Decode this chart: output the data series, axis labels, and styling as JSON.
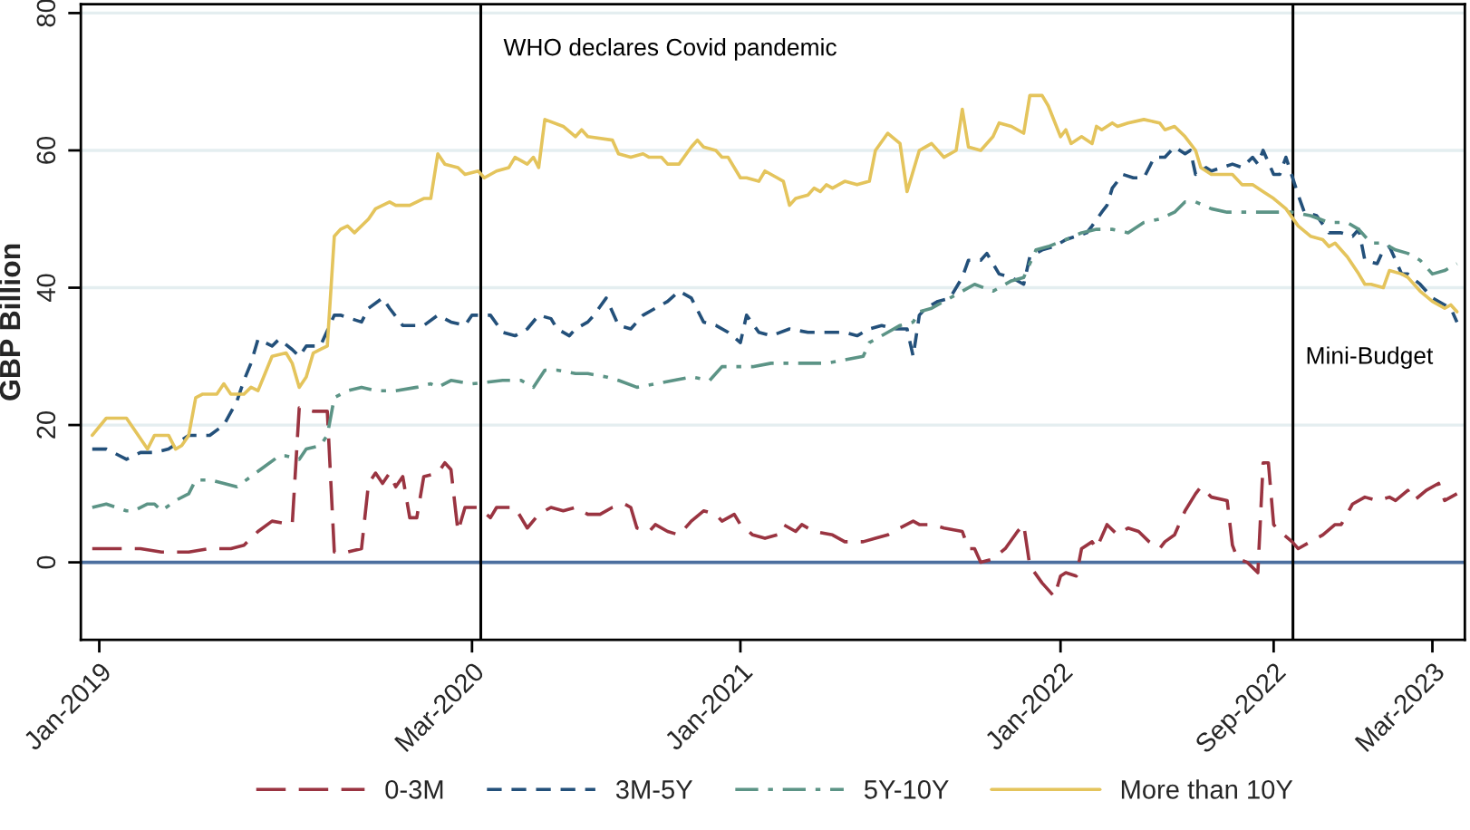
{
  "chart_data": {
    "type": "line",
    "ylabel": "GBP Billion",
    "xlim": [
      "2018-12-11",
      "2023-04-07"
    ],
    "xticks": [
      {
        "value": "2019-01",
        "label": "Jan-2019"
      },
      {
        "value": "2020-03",
        "label": "Mar-2020"
      },
      {
        "value": "2021-01",
        "label": "Jan-2021"
      },
      {
        "value": "2022-01",
        "label": "Jan-2022"
      },
      {
        "value": "2022-09",
        "label": "Sep-2022"
      },
      {
        "value": "2023-03",
        "label": "Mar-2023"
      }
    ],
    "ylim": [
      -11.3,
      81.3
    ],
    "yticks": [
      0,
      20,
      40,
      60,
      80
    ],
    "grid": "y",
    "legend": "bottom",
    "ref_lines": [
      {
        "axis": "y",
        "value": 0,
        "color": "#4c6f9f"
      },
      {
        "axis": "x",
        "value": "2020-03-11",
        "label": "WHO declares Covid pandemic",
        "color": "#000000"
      },
      {
        "axis": "x",
        "value": "2022-09-23",
        "label": "Mini-Budget",
        "color": "#000000"
      }
    ],
    "series": [
      {
        "name": "0-3M",
        "color": "#9a3441",
        "line_style": "longdash",
        "x": [
          "2018-12-24",
          "2019-01-25",
          "2019-02-17",
          "2019-03-13",
          "2019-04-13",
          "2019-05-07",
          "2019-05-31",
          "2019-06-15",
          "2019-07-01",
          "2019-07-17",
          "2019-08-09",
          "2019-08-17",
          "2019-09-02",
          "2019-09-18",
          "2019-09-26",
          "2019-10-11",
          "2019-10-27",
          "2019-11-04",
          "2019-11-12",
          "2019-11-20",
          "2019-11-28",
          "2019-12-05",
          "2019-12-13",
          "2019-12-21",
          "2019-12-29",
          "2020-01-06",
          "2020-01-22",
          "2020-01-30",
          "2020-02-06",
          "2020-02-14",
          "2020-02-22",
          "2020-03-08",
          "2020-03-22",
          "2020-03-29",
          "2020-04-19",
          "2020-05-03",
          "2020-05-16",
          "2020-05-30",
          "2020-06-13",
          "2020-06-27",
          "2020-07-11",
          "2020-07-25",
          "2020-08-08",
          "2020-08-22",
          "2020-08-29",
          "2020-09-05",
          "2020-09-19",
          "2020-09-26",
          "2020-10-10",
          "2020-10-23",
          "2020-11-06",
          "2020-11-20",
          "2020-12-04",
          "2020-12-11",
          "2020-12-25",
          "2021-01-01",
          "2021-01-15",
          "2021-01-29",
          "2021-02-12",
          "2021-02-19",
          "2021-03-05",
          "2021-03-12",
          "2021-03-26",
          "2021-04-16",
          "2021-04-30",
          "2021-05-21",
          "2021-06-04",
          "2021-06-18",
          "2021-07-02",
          "2021-07-17",
          "2021-07-24",
          "2021-08-07",
          "2021-08-21",
          "2021-09-11",
          "2021-09-18",
          "2021-09-25",
          "2021-10-02",
          "2021-10-16",
          "2021-10-30",
          "2021-11-13",
          "2021-11-20",
          "2021-11-27",
          "2021-12-11",
          "2021-12-25",
          "2022-01-01",
          "2022-01-07",
          "2022-01-19",
          "2022-01-25",
          "2022-02-06",
          "2022-02-11",
          "2022-02-23",
          "2022-03-07",
          "2022-03-19",
          "2022-03-31",
          "2022-04-12",
          "2022-04-24",
          "2022-04-30",
          "2022-05-11",
          "2022-05-23",
          "2022-06-04",
          "2022-06-10",
          "2022-06-22",
          "2022-07-10",
          "2022-07-16",
          "2022-07-22",
          "2022-08-02",
          "2022-08-14",
          "2022-08-20",
          "2022-08-26",
          "2022-09-01",
          "2022-09-08",
          "2022-09-22",
          "2022-09-29",
          "2022-10-13",
          "2022-10-27",
          "2022-11-10",
          "2022-11-17",
          "2022-11-30",
          "2022-12-14",
          "2022-12-28",
          "2023-01-11",
          "2023-01-18",
          "2023-02-01",
          "2023-02-08",
          "2023-02-22",
          "2023-03-08",
          "2023-03-15",
          "2023-03-29"
        ],
        "values": [
          2,
          2,
          2,
          1.5,
          1.5,
          2,
          2,
          2.5,
          4.5,
          6,
          5.5,
          22.5,
          22,
          22,
          1.5,
          1.5,
          2,
          11.5,
          13,
          11.5,
          13,
          11,
          12.5,
          6.5,
          6.5,
          12.5,
          13,
          14.5,
          13.5,
          4.5,
          8,
          8,
          6.5,
          8,
          8,
          5,
          7,
          8,
          7.5,
          8,
          7,
          7,
          8,
          8.5,
          8,
          5,
          4.5,
          5.5,
          4.5,
          4,
          6,
          7.5,
          7,
          6,
          7,
          5.5,
          4,
          3.5,
          4,
          5.5,
          4.5,
          5.5,
          4.5,
          4,
          3,
          3,
          3.5,
          4,
          5,
          6,
          5.5,
          5.5,
          5,
          4.5,
          2,
          2,
          0,
          0.5,
          2,
          4.5,
          5.5,
          -0.5,
          -3,
          -5,
          -2,
          -1.5,
          -2,
          2,
          3,
          2,
          5.5,
          4,
          5,
          4.5,
          3,
          2,
          3,
          4,
          7.5,
          10,
          11,
          9.5,
          9,
          2.5,
          0.5,
          0,
          -1.5,
          14.5,
          14.5,
          5.5,
          4.5,
          3,
          2,
          3,
          4,
          5.5,
          5.5,
          8.5,
          9.5,
          9,
          9.5,
          9,
          10.5,
          9,
          10.5,
          11.5,
          9,
          10
        ]
      },
      {
        "name": "3M-5Y",
        "color": "#23507a",
        "line_style": "dashed",
        "x": [
          "2018-12-24",
          "2019-01-09",
          "2019-01-17",
          "2019-02-01",
          "2019-02-17",
          "2019-03-05",
          "2019-03-21",
          "2019-04-13",
          "2019-05-07",
          "2019-05-23",
          "2019-06-07",
          "2019-06-15",
          "2019-06-23",
          "2019-07-01",
          "2019-07-17",
          "2019-07-25",
          "2019-08-09",
          "2019-08-17",
          "2019-08-25",
          "2019-09-10",
          "2019-09-26",
          "2019-10-03",
          "2019-10-27",
          "2019-11-04",
          "2019-11-20",
          "2019-11-28",
          "2019-12-13",
          "2019-12-21",
          "2020-01-06",
          "2020-01-22",
          "2020-02-06",
          "2020-02-22",
          "2020-03-01",
          "2020-03-22",
          "2020-04-05",
          "2020-04-19",
          "2020-05-03",
          "2020-05-16",
          "2020-05-30",
          "2020-06-06",
          "2020-06-20",
          "2020-06-27",
          "2020-07-11",
          "2020-07-18",
          "2020-08-01",
          "2020-08-15",
          "2020-08-29",
          "2020-09-12",
          "2020-09-26",
          "2020-10-10",
          "2020-10-23",
          "2020-11-06",
          "2020-11-20",
          "2020-12-04",
          "2020-12-18",
          "2021-01-01",
          "2021-01-08",
          "2021-01-22",
          "2021-02-05",
          "2021-02-26",
          "2021-03-19",
          "2021-04-09",
          "2021-04-30",
          "2021-05-14",
          "2021-05-28",
          "2021-06-11",
          "2021-06-25",
          "2021-07-10",
          "2021-07-17",
          "2021-07-24",
          "2021-07-31",
          "2021-08-14",
          "2021-08-28",
          "2021-09-11",
          "2021-09-18",
          "2021-10-02",
          "2021-10-09",
          "2021-10-23",
          "2021-11-06",
          "2021-11-20",
          "2021-11-27",
          "2021-12-11",
          "2021-12-25",
          "2022-01-07",
          "2022-01-19",
          "2022-01-31",
          "2022-02-06",
          "2022-02-17",
          "2022-02-23",
          "2022-03-01",
          "2022-03-13",
          "2022-03-25",
          "2022-04-06",
          "2022-04-18",
          "2022-04-30",
          "2022-05-11",
          "2022-05-23",
          "2022-05-29",
          "2022-06-04",
          "2022-06-16",
          "2022-06-22",
          "2022-07-04",
          "2022-07-16",
          "2022-07-27",
          "2022-08-08",
          "2022-08-14",
          "2022-08-20",
          "2022-09-01",
          "2022-09-08",
          "2022-09-15",
          "2022-09-29",
          "2022-10-06",
          "2022-10-20",
          "2022-11-03",
          "2022-11-17",
          "2022-11-30",
          "2022-12-07",
          "2022-12-14",
          "2022-12-28",
          "2023-01-04",
          "2023-01-11",
          "2023-01-25",
          "2023-02-01",
          "2023-02-15",
          "2023-03-01",
          "2023-03-15",
          "2023-03-22",
          "2023-03-29"
        ],
        "values": [
          16.5,
          16.5,
          16,
          15,
          16,
          16,
          16.5,
          18.5,
          18.5,
          20,
          23.5,
          26.5,
          29,
          32.5,
          31.5,
          32.5,
          31,
          30,
          31.5,
          31.5,
          36,
          36,
          35,
          37,
          38.5,
          37,
          34.5,
          34.5,
          34.5,
          36,
          35,
          34.5,
          36,
          36,
          33.5,
          33,
          34,
          36,
          35.5,
          34,
          33,
          34,
          35,
          36,
          38.5,
          34.5,
          34,
          36,
          37,
          38,
          39.5,
          38.5,
          35,
          34.5,
          33.5,
          32,
          36,
          33.5,
          33,
          34,
          33.5,
          33.5,
          33.5,
          33,
          34,
          34.5,
          34,
          34,
          30,
          36,
          37,
          38,
          38.5,
          41.5,
          44,
          44,
          45,
          42,
          41.5,
          40.5,
          44.5,
          45.5,
          46,
          47,
          47.5,
          48,
          49,
          51,
          52,
          54.5,
          56.5,
          56,
          56,
          59,
          59,
          60.5,
          59.5,
          60,
          56.5,
          57.5,
          57,
          57.5,
          58,
          57.5,
          59,
          58,
          60,
          56.5,
          56.5,
          59,
          53.5,
          51,
          50.5,
          48,
          48,
          47.5,
          48.5,
          44,
          43.5,
          45.5,
          46,
          42,
          42,
          40.5,
          38.5,
          37.5,
          37,
          35
        ]
      },
      {
        "name": "5Y-10Y",
        "color": "#5c9486",
        "line_style": "dashdot",
        "x": [
          "2018-12-24",
          "2019-01-09",
          "2019-02-01",
          "2019-02-09",
          "2019-02-25",
          "2019-03-05",
          "2019-03-13",
          "2019-03-29",
          "2019-04-13",
          "2019-04-21",
          "2019-05-07",
          "2019-05-23",
          "2019-06-07",
          "2019-06-23",
          "2019-07-09",
          "2019-07-25",
          "2019-08-02",
          "2019-08-17",
          "2019-08-25",
          "2019-09-10",
          "2019-09-18",
          "2019-09-26",
          "2019-10-11",
          "2019-10-27",
          "2019-11-12",
          "2019-12-05",
          "2019-12-29",
          "2020-01-14",
          "2020-01-22",
          "2020-02-06",
          "2020-03-01",
          "2020-04-05",
          "2020-04-26",
          "2020-05-10",
          "2020-05-23",
          "2020-06-06",
          "2020-06-27",
          "2020-07-11",
          "2020-08-01",
          "2020-08-15",
          "2020-09-05",
          "2020-09-26",
          "2020-10-17",
          "2020-11-06",
          "2020-11-27",
          "2020-12-11",
          "2020-12-25",
          "2021-01-15",
          "2021-02-05",
          "2021-02-26",
          "2021-03-19",
          "2021-04-09",
          "2021-04-30",
          "2021-05-21",
          "2021-05-28",
          "2021-06-18",
          "2021-07-02",
          "2021-07-17",
          "2021-07-24",
          "2021-08-07",
          "2021-08-21",
          "2021-09-04",
          "2021-09-25",
          "2021-10-16",
          "2021-10-23",
          "2021-11-06",
          "2021-11-20",
          "2021-12-04",
          "2021-12-18",
          "2022-01-07",
          "2022-01-25",
          "2022-02-11",
          "2022-03-01",
          "2022-03-19",
          "2022-04-06",
          "2022-04-24",
          "2022-05-11",
          "2022-05-23",
          "2022-06-04",
          "2022-06-22",
          "2022-07-10",
          "2022-07-27",
          "2022-08-14",
          "2022-09-01",
          "2022-09-22",
          "2022-10-13",
          "2022-11-03",
          "2022-11-24",
          "2022-12-07",
          "2022-12-21",
          "2023-01-04",
          "2023-01-18",
          "2023-02-01",
          "2023-02-15",
          "2023-03-01",
          "2023-03-15",
          "2023-03-22",
          "2023-03-29"
        ],
        "values": [
          8,
          8.5,
          7.5,
          7.5,
          8.5,
          8.5,
          7.5,
          9,
          10,
          12,
          12,
          11.5,
          11,
          12.5,
          14,
          15.5,
          15.5,
          15,
          16.5,
          17,
          18.5,
          24,
          25,
          25.5,
          25,
          25,
          25.5,
          26,
          25.5,
          26.5,
          26,
          26.5,
          26.5,
          25.5,
          28,
          28,
          27.5,
          27.5,
          27,
          26.5,
          25.5,
          26,
          26.5,
          27,
          26.5,
          28.5,
          28.5,
          28.5,
          29,
          29,
          29,
          29,
          29.5,
          30,
          32,
          33.5,
          34.5,
          35,
          36.5,
          37,
          38,
          39,
          40.5,
          39.5,
          40,
          41,
          41.5,
          45.5,
          46,
          47,
          48,
          48.5,
          48.5,
          48,
          49.5,
          50,
          51,
          52.5,
          52.5,
          51.5,
          51,
          51,
          51,
          51,
          51,
          50.5,
          49.5,
          49.5,
          48.5,
          46.5,
          46.5,
          45.5,
          45,
          44,
          42,
          42.5,
          43,
          43.5
        ]
      },
      {
        "name": "More than 10Y",
        "color": "#e4c45c",
        "line_style": "solid",
        "x": [
          "2018-12-24",
          "2019-01-09",
          "2019-02-01",
          "2019-02-09",
          "2019-02-25",
          "2019-03-05",
          "2019-03-21",
          "2019-03-29",
          "2019-04-05",
          "2019-04-13",
          "2019-04-21",
          "2019-04-29",
          "2019-05-15",
          "2019-05-23",
          "2019-05-31",
          "2019-06-15",
          "2019-06-23",
          "2019-07-01",
          "2019-07-09",
          "2019-07-17",
          "2019-08-02",
          "2019-08-09",
          "2019-08-17",
          "2019-08-25",
          "2019-09-02",
          "2019-09-10",
          "2019-09-18",
          "2019-09-26",
          "2019-10-03",
          "2019-10-11",
          "2019-10-19",
          "2019-11-04",
          "2019-11-12",
          "2019-11-20",
          "2019-11-28",
          "2019-12-05",
          "2019-12-21",
          "2020-01-06",
          "2020-01-14",
          "2020-01-22",
          "2020-01-30",
          "2020-02-14",
          "2020-02-22",
          "2020-03-08",
          "2020-03-15",
          "2020-03-29",
          "2020-04-12",
          "2020-04-19",
          "2020-04-26",
          "2020-05-03",
          "2020-05-10",
          "2020-05-16",
          "2020-05-23",
          "2020-06-13",
          "2020-06-27",
          "2020-07-04",
          "2020-07-11",
          "2020-08-08",
          "2020-08-15",
          "2020-08-29",
          "2020-09-12",
          "2020-09-19",
          "2020-10-03",
          "2020-10-10",
          "2020-10-23",
          "2020-11-06",
          "2020-11-13",
          "2020-11-20",
          "2020-12-04",
          "2020-12-11",
          "2020-12-18",
          "2021-01-01",
          "2021-01-08",
          "2021-01-22",
          "2021-01-29",
          "2021-02-12",
          "2021-02-19",
          "2021-02-26",
          "2021-03-05",
          "2021-03-19",
          "2021-03-26",
          "2021-04-02",
          "2021-04-09",
          "2021-04-16",
          "2021-04-30",
          "2021-05-14",
          "2021-05-28",
          "2021-06-04",
          "2021-06-18",
          "2021-07-02",
          "2021-07-10",
          "2021-07-24",
          "2021-08-07",
          "2021-08-21",
          "2021-09-04",
          "2021-09-11",
          "2021-09-18",
          "2021-10-02",
          "2021-10-16",
          "2021-10-23",
          "2021-11-06",
          "2021-11-20",
          "2021-11-27",
          "2021-12-11",
          "2021-12-18",
          "2022-01-01",
          "2022-01-07",
          "2022-01-13",
          "2022-01-25",
          "2022-02-06",
          "2022-02-11",
          "2022-02-17",
          "2022-03-01",
          "2022-03-07",
          "2022-03-19",
          "2022-04-06",
          "2022-04-24",
          "2022-04-30",
          "2022-05-11",
          "2022-05-23",
          "2022-06-04",
          "2022-06-10",
          "2022-06-22",
          "2022-07-04",
          "2022-07-16",
          "2022-07-27",
          "2022-08-08",
          "2022-08-20",
          "2022-09-01",
          "2022-09-15",
          "2022-09-29",
          "2022-10-13",
          "2022-10-27",
          "2022-11-03",
          "2022-11-10",
          "2022-11-24",
          "2022-12-07",
          "2022-12-14",
          "2022-12-21",
          "2023-01-04",
          "2023-01-11",
          "2023-01-25",
          "2023-02-01",
          "2023-02-15",
          "2023-03-01",
          "2023-03-15",
          "2023-03-22",
          "2023-03-29"
        ],
        "values": [
          18.5,
          21,
          21,
          19.5,
          16.5,
          18.5,
          18.5,
          16.5,
          17,
          18.5,
          24,
          24.5,
          24.5,
          26,
          24.5,
          24.5,
          25.5,
          25,
          27.5,
          30,
          30.5,
          29,
          25.5,
          27,
          30.5,
          31,
          31.5,
          47.5,
          48.5,
          49,
          48,
          50,
          51.5,
          52,
          52.5,
          52,
          52,
          53,
          53,
          59.5,
          58,
          57.5,
          56.5,
          57,
          56,
          57,
          57.5,
          59,
          58.5,
          58,
          59,
          57.5,
          64.5,
          63.5,
          62,
          63,
          62,
          61.5,
          59.5,
          59,
          59.5,
          59,
          59,
          58,
          58,
          60.5,
          61.5,
          60.5,
          60,
          59,
          59,
          56,
          56,
          55.5,
          57,
          56,
          55.5,
          52,
          53,
          53.5,
          54.5,
          54,
          55,
          54.5,
          55.5,
          55,
          55.5,
          60,
          62.5,
          61,
          54,
          60,
          61,
          59,
          60,
          66,
          60.5,
          60,
          62,
          64,
          63.5,
          62.5,
          68,
          68,
          66.5,
          62,
          63,
          61,
          62,
          61,
          63.5,
          63,
          64,
          63.5,
          64,
          64.5,
          64,
          63,
          63.5,
          62,
          60,
          57.5,
          56.5,
          56.5,
          56.5,
          55,
          55,
          54,
          53,
          51.5,
          49,
          47.5,
          47,
          46,
          46.5,
          44.5,
          42,
          40.5,
          40.5,
          40,
          42.5,
          42,
          41.5,
          39.5,
          38,
          37,
          37.5,
          36.5
        ]
      }
    ]
  }
}
